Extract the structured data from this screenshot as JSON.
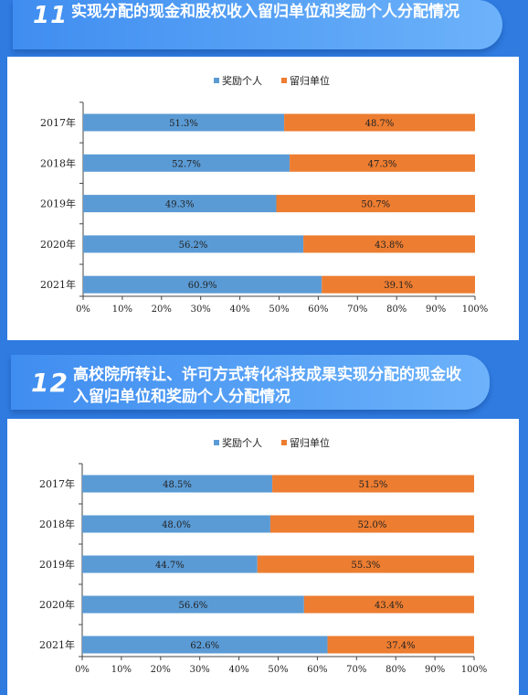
{
  "sections": [
    {
      "number": "11",
      "title": "实现分配的现金和股权收入留归单位和奖励个人分配情况"
    },
    {
      "number": "12",
      "title": "高校院所转让、许可方式转化科技成果实现分配的现金收入留归单位和奖励个人分配情况"
    }
  ],
  "chart_data": [
    {
      "type": "bar",
      "orientation": "horizontal",
      "stacked": "100%",
      "categories": [
        "2017年",
        "2018年",
        "2019年",
        "2020年",
        "2021年"
      ],
      "series": [
        {
          "name": "奖励个人",
          "values": [
            51.3,
            52.7,
            49.3,
            56.2,
            60.9
          ],
          "labels": [
            "51.3%",
            "52.7%",
            "49.3%",
            "56.2%",
            "60.9%"
          ],
          "color": "#5b9bd5"
        },
        {
          "name": "留归单位",
          "values": [
            48.7,
            47.3,
            50.7,
            43.8,
            39.1
          ],
          "labels": [
            "48.7%",
            "47.3%",
            "50.7%",
            "43.8%",
            "39.1%"
          ],
          "color": "#ed7d31"
        }
      ],
      "xticks": [
        "0%",
        "10%",
        "20%",
        "30%",
        "40%",
        "50%",
        "60%",
        "70%",
        "80%",
        "90%",
        "100%"
      ],
      "xlim": [
        0,
        100
      ],
      "legend": "top-center",
      "grid": false
    },
    {
      "type": "bar",
      "orientation": "horizontal",
      "stacked": "100%",
      "categories": [
        "2017年",
        "2018年",
        "2019年",
        "2020年",
        "2021年"
      ],
      "series": [
        {
          "name": "奖励个人",
          "values": [
            48.5,
            48.0,
            44.7,
            56.6,
            62.6
          ],
          "labels": [
            "48.5%",
            "48.0%",
            "44.7%",
            "56.6%",
            "62.6%"
          ],
          "color": "#5b9bd5"
        },
        {
          "name": "留归单位",
          "values": [
            51.5,
            52.0,
            55.3,
            43.4,
            37.4
          ],
          "labels": [
            "51.5%",
            "52.0%",
            "55.3%",
            "43.4%",
            "37.4%"
          ],
          "color": "#ed7d31"
        }
      ],
      "xticks": [
        "0%",
        "10%",
        "20%",
        "30%",
        "40%",
        "50%",
        "60%",
        "70%",
        "80%",
        "90%",
        "100%"
      ],
      "xlim": [
        0,
        100
      ],
      "legend": "top-center",
      "grid": false
    }
  ]
}
